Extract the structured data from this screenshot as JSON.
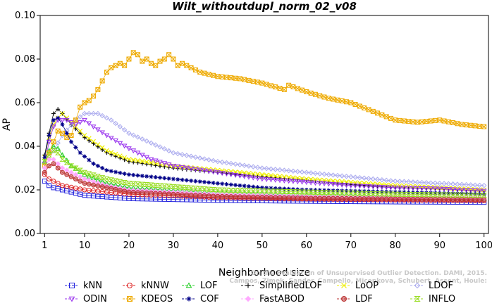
{
  "chart_data": {
    "type": "line",
    "title": "Wilt_withoutdupl_norm_02_v08",
    "xlabel": "Neighborhood size",
    "ylabel": "AP",
    "xlim": [
      0,
      101
    ],
    "ylim": [
      0,
      0.1
    ],
    "x_ticks": [
      1,
      10,
      20,
      30,
      40,
      50,
      60,
      70,
      80,
      90,
      100
    ],
    "y_ticks": [
      0.0,
      0.02,
      0.04,
      0.06,
      0.08,
      0.1
    ],
    "y_tick_labels": [
      "0.00",
      "0.02",
      "0.04",
      "0.06",
      "0.08",
      "0.10"
    ],
    "grid": false,
    "legend_position": "bottom",
    "watermark": "Campos, Zimek, Sander, Campello, Micenkova, Schubert, Assent, Houle: On the Evaluation of Unsupervised Outlier Detection. DAMI, 2015.",
    "watermark_lines": [
      "Campos, Zimek, Sander, Campello, Micenkova, Schubert, Assent, Houle:",
      "On the Evaluation of Unsupervised Outlier Detection. DAMI, 2015."
    ],
    "legend_order": [
      "kNN",
      "kNNW",
      "LOF",
      "SimplifiedLOF",
      "LoOP",
      "LDOF",
      "ODIN",
      "KDEOS",
      "COF",
      "FastABOD",
      "LDF",
      "INFLO"
    ],
    "series": [
      {
        "name": "kNN",
        "color": "#2222dd",
        "marker": "square",
        "anchors": [
          [
            1,
            0.024
          ],
          [
            2,
            0.022
          ],
          [
            3,
            0.021
          ],
          [
            5,
            0.02
          ],
          [
            10,
            0.0175
          ],
          [
            20,
            0.016
          ],
          [
            40,
            0.0152
          ],
          [
            60,
            0.0148
          ],
          [
            80,
            0.0145
          ],
          [
            100,
            0.0143
          ]
        ]
      },
      {
        "name": "kNNW",
        "color": "#dd2222",
        "marker": "circle",
        "anchors": [
          [
            1,
            0.027
          ],
          [
            2,
            0.025
          ],
          [
            3,
            0.024
          ],
          [
            5,
            0.022
          ],
          [
            10,
            0.02
          ],
          [
            20,
            0.018
          ],
          [
            40,
            0.0165
          ],
          [
            60,
            0.0158
          ],
          [
            80,
            0.0154
          ],
          [
            100,
            0.015
          ]
        ]
      },
      {
        "name": "LOF",
        "color": "#22cc22",
        "marker": "triangle-up",
        "anchors": [
          [
            1,
            0.033
          ],
          [
            2,
            0.038
          ],
          [
            3,
            0.04
          ],
          [
            4,
            0.039
          ],
          [
            5,
            0.036
          ],
          [
            7,
            0.031
          ],
          [
            10,
            0.027
          ],
          [
            15,
            0.023
          ],
          [
            20,
            0.021
          ],
          [
            40,
            0.0185
          ],
          [
            60,
            0.0175
          ],
          [
            80,
            0.0168
          ],
          [
            100,
            0.016
          ]
        ]
      },
      {
        "name": "SimplifiedLOF",
        "color": "#111111",
        "marker": "plus",
        "anchors": [
          [
            1,
            0.036
          ],
          [
            2,
            0.046
          ],
          [
            3,
            0.055
          ],
          [
            4,
            0.057
          ],
          [
            5,
            0.055
          ],
          [
            7,
            0.05
          ],
          [
            10,
            0.044
          ],
          [
            15,
            0.037
          ],
          [
            20,
            0.033
          ],
          [
            30,
            0.03
          ],
          [
            40,
            0.028
          ],
          [
            50,
            0.026
          ],
          [
            60,
            0.0245
          ],
          [
            70,
            0.0225
          ],
          [
            80,
            0.021
          ],
          [
            90,
            0.0205
          ],
          [
            100,
            0.0195
          ]
        ]
      },
      {
        "name": "LoOP",
        "color": "#eeee00",
        "marker": "x",
        "anchors": [
          [
            1,
            0.035
          ],
          [
            2,
            0.044
          ],
          [
            3,
            0.05
          ],
          [
            4,
            0.053
          ],
          [
            5,
            0.055
          ],
          [
            6,
            0.053
          ],
          [
            8,
            0.049
          ],
          [
            10,
            0.045
          ],
          [
            15,
            0.038
          ],
          [
            20,
            0.034
          ],
          [
            30,
            0.031
          ],
          [
            40,
            0.029
          ],
          [
            50,
            0.027
          ],
          [
            60,
            0.025
          ],
          [
            70,
            0.0235
          ],
          [
            80,
            0.022
          ],
          [
            90,
            0.021
          ],
          [
            100,
            0.02
          ]
        ]
      },
      {
        "name": "LDOF",
        "color": "#aaaaee",
        "marker": "diamond",
        "anchors": [
          [
            1,
            0.03
          ],
          [
            3,
            0.038
          ],
          [
            5,
            0.045
          ],
          [
            8,
            0.052
          ],
          [
            10,
            0.055
          ],
          [
            13,
            0.055
          ],
          [
            16,
            0.052
          ],
          [
            20,
            0.046
          ],
          [
            30,
            0.037
          ],
          [
            40,
            0.033
          ],
          [
            50,
            0.03
          ],
          [
            60,
            0.028
          ],
          [
            70,
            0.026
          ],
          [
            80,
            0.024
          ],
          [
            90,
            0.023
          ],
          [
            100,
            0.022
          ]
        ]
      },
      {
        "name": "ODIN",
        "color": "#9933ee",
        "marker": "triangle-down",
        "anchors": [
          [
            1,
            0.032
          ],
          [
            2,
            0.042
          ],
          [
            3,
            0.049
          ],
          [
            4,
            0.052
          ],
          [
            6,
            0.052
          ],
          [
            8,
            0.05
          ],
          [
            10,
            0.052
          ],
          [
            12,
            0.049
          ],
          [
            15,
            0.045
          ],
          [
            20,
            0.039
          ],
          [
            25,
            0.034
          ],
          [
            30,
            0.031
          ],
          [
            40,
            0.028
          ],
          [
            50,
            0.025
          ],
          [
            60,
            0.0235
          ],
          [
            70,
            0.022
          ],
          [
            80,
            0.021
          ],
          [
            90,
            0.0205
          ],
          [
            100,
            0.0195
          ]
        ]
      },
      {
        "name": "KDEOS",
        "color": "#eeaa00",
        "marker": "square-x",
        "anchors": [
          [
            1,
            0.031
          ],
          [
            2,
            0.037
          ],
          [
            3,
            0.042
          ],
          [
            4,
            0.047
          ],
          [
            5,
            0.046
          ],
          [
            6,
            0.044
          ],
          [
            7,
            0.045
          ],
          [
            8,
            0.052
          ],
          [
            9,
            0.058
          ],
          [
            10,
            0.06
          ],
          [
            11,
            0.061
          ],
          [
            12,
            0.063
          ],
          [
            13,
            0.066
          ],
          [
            14,
            0.07
          ],
          [
            15,
            0.074
          ],
          [
            16,
            0.076
          ],
          [
            17,
            0.077
          ],
          [
            18,
            0.078
          ],
          [
            19,
            0.077
          ],
          [
            20,
            0.08
          ],
          [
            21,
            0.083
          ],
          [
            22,
            0.082
          ],
          [
            23,
            0.079
          ],
          [
            24,
            0.08
          ],
          [
            25,
            0.078
          ],
          [
            26,
            0.077
          ],
          [
            27,
            0.079
          ],
          [
            28,
            0.08
          ],
          [
            29,
            0.082
          ],
          [
            30,
            0.08
          ],
          [
            31,
            0.077
          ],
          [
            32,
            0.078
          ],
          [
            34,
            0.076
          ],
          [
            36,
            0.074
          ],
          [
            40,
            0.072
          ],
          [
            45,
            0.071
          ],
          [
            50,
            0.069
          ],
          [
            55,
            0.066
          ],
          [
            56,
            0.068
          ],
          [
            60,
            0.065
          ],
          [
            65,
            0.062
          ],
          [
            70,
            0.06
          ],
          [
            75,
            0.056
          ],
          [
            80,
            0.052
          ],
          [
            85,
            0.051
          ],
          [
            90,
            0.052
          ],
          [
            95,
            0.05
          ],
          [
            100,
            0.049
          ]
        ]
      },
      {
        "name": "COF",
        "color": "#000088",
        "marker": "asterisk",
        "anchors": [
          [
            1,
            0.035
          ],
          [
            2,
            0.045
          ],
          [
            3,
            0.052
          ],
          [
            4,
            0.053
          ],
          [
            5,
            0.05
          ],
          [
            6,
            0.046
          ],
          [
            7,
            0.042
          ],
          [
            9,
            0.037
          ],
          [
            12,
            0.032
          ],
          [
            15,
            0.029
          ],
          [
            20,
            0.027
          ],
          [
            30,
            0.025
          ],
          [
            40,
            0.023
          ],
          [
            50,
            0.021
          ],
          [
            60,
            0.02
          ],
          [
            70,
            0.0195
          ],
          [
            80,
            0.019
          ],
          [
            90,
            0.0185
          ],
          [
            100,
            0.018
          ]
        ]
      },
      {
        "name": "FastABOD",
        "color": "#ffaaff",
        "marker": "diamond-filled",
        "anchors": [
          [
            1,
            0.03
          ],
          [
            2,
            0.034
          ],
          [
            3,
            0.034
          ],
          [
            4,
            0.032
          ],
          [
            5,
            0.03
          ],
          [
            7,
            0.028
          ],
          [
            10,
            0.025
          ],
          [
            15,
            0.022
          ],
          [
            20,
            0.02
          ],
          [
            40,
            0.018
          ],
          [
            60,
            0.017
          ],
          [
            80,
            0.0165
          ],
          [
            100,
            0.016
          ]
        ]
      },
      {
        "name": "LDF",
        "color": "#bb3333",
        "marker": "circle-filled",
        "anchors": [
          [
            1,
            0.028
          ],
          [
            2,
            0.031
          ],
          [
            3,
            0.032
          ],
          [
            4,
            0.03
          ],
          [
            5,
            0.028
          ],
          [
            7,
            0.026
          ],
          [
            10,
            0.023
          ],
          [
            15,
            0.021
          ],
          [
            20,
            0.019
          ],
          [
            40,
            0.017
          ],
          [
            60,
            0.0162
          ],
          [
            80,
            0.0158
          ],
          [
            100,
            0.0155
          ]
        ]
      },
      {
        "name": "INFLO",
        "color": "#99dd22",
        "marker": "hourglass",
        "anchors": [
          [
            1,
            0.033
          ],
          [
            2,
            0.036
          ],
          [
            3,
            0.038
          ],
          [
            4,
            0.037
          ],
          [
            5,
            0.034
          ],
          [
            7,
            0.031
          ],
          [
            10,
            0.028
          ],
          [
            15,
            0.025
          ],
          [
            20,
            0.023
          ],
          [
            40,
            0.02
          ],
          [
            60,
            0.019
          ],
          [
            80,
            0.018
          ],
          [
            100,
            0.0175
          ]
        ]
      }
    ]
  }
}
